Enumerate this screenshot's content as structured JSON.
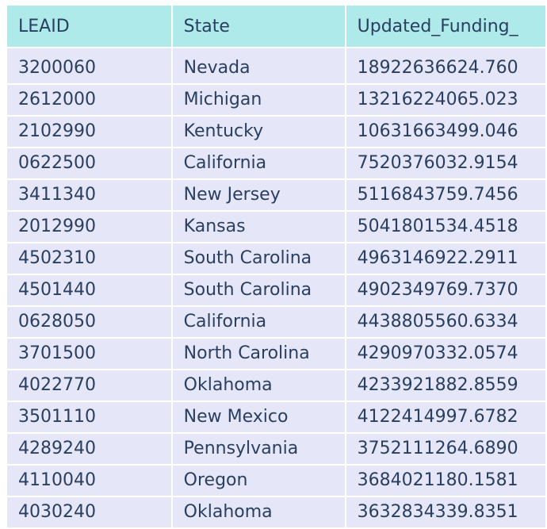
{
  "columns": [
    "LEAID",
    "State",
    "Updated_Funding_"
  ],
  "rows": [
    [
      "3200060",
      "Nevada",
      "18922636624.760"
    ],
    [
      "2612000",
      "Michigan",
      "13216224065.023"
    ],
    [
      "2102990",
      "Kentucky",
      "10631663499.046"
    ],
    [
      "0622500",
      "California",
      "7520376032.9154"
    ],
    [
      "3411340",
      "New Jersey",
      "5116843759.7456"
    ],
    [
      "2012990",
      "Kansas",
      "5041801534.4518"
    ],
    [
      "4502310",
      "South Carolina",
      "4963146922.2911"
    ],
    [
      "4501440",
      "South Carolina",
      "4902349769.7370"
    ],
    [
      "0628050",
      "California",
      "4438805560.6334"
    ],
    [
      "3701500",
      "North Carolina",
      "4290970332.0574"
    ],
    [
      "4022770",
      "Oklahoma",
      "4233921882.8559"
    ],
    [
      "3501110",
      "New Mexico",
      "4122414997.6782"
    ],
    [
      "4289240",
      "Pennsylvania",
      "3752111264.6890"
    ],
    [
      "4110040",
      "Oregon",
      "3684021180.1581"
    ],
    [
      "4030240",
      "Oklahoma",
      "3632834339.8351"
    ]
  ],
  "colors": {
    "header_bg": "#aeeaea",
    "cell_bg": "#e6e6f9",
    "text": "#2a3f5f"
  }
}
